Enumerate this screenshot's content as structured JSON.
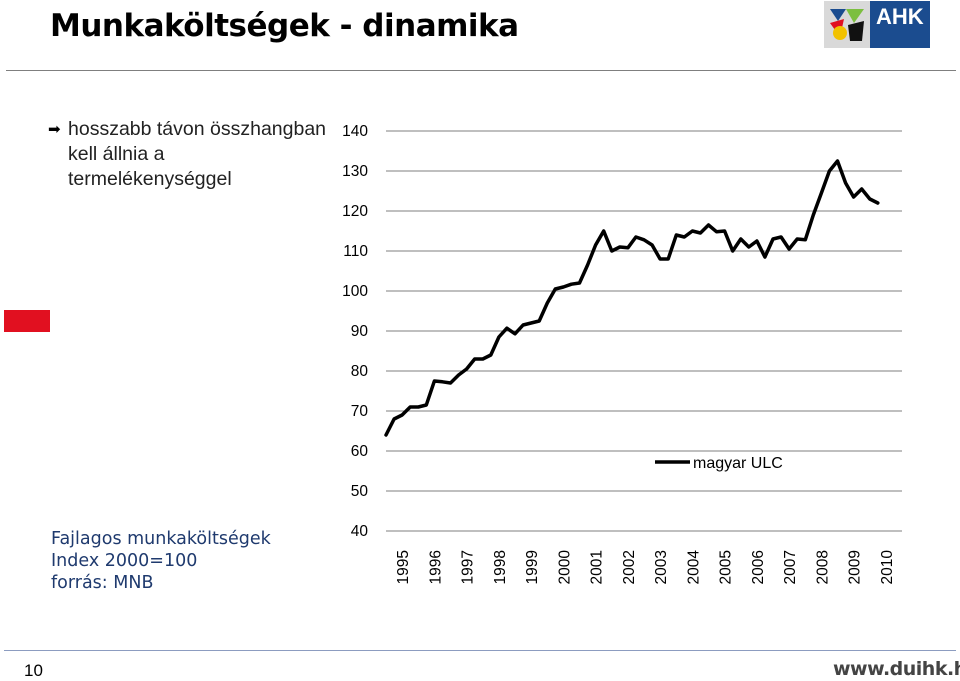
{
  "slide": {
    "title": "Munkaköltségek - dinamika",
    "bullet_text": "hosszabb távon összhangban kell állnia a termelékenységgel",
    "caption_line1": "Fajlagos munkaköltségek",
    "caption_line2": "Index 2000=100",
    "caption_line3": "forrás: MNB",
    "page_number": "10",
    "url": "www.duihk.hu",
    "logo_text": "AHK"
  },
  "colors": {
    "title_rule": "#7f7f7f",
    "logo_blue": "#1b4c8f",
    "red_marker": "#e11020",
    "caption": "#1f3a6e",
    "footer_rule": "#8c9cc0",
    "line": "#000000"
  },
  "chart_data": {
    "type": "line",
    "xlabel": "",
    "ylabel": "",
    "ylim": [
      40,
      140
    ],
    "yticks": [
      40,
      50,
      60,
      70,
      80,
      90,
      100,
      110,
      120,
      130,
      140
    ],
    "categories": [
      "1995",
      "1996",
      "1997",
      "1998",
      "1999",
      "2000",
      "2001",
      "2002",
      "2003",
      "2004",
      "2005",
      "2006",
      "2007",
      "2008",
      "2009",
      "2010"
    ],
    "grid": "horizontal",
    "legend_position": "right",
    "series": [
      {
        "name": "magyar ULC",
        "x": [
          1995.0,
          1995.25,
          1995.5,
          1995.75,
          1996.0,
          1996.25,
          1996.5,
          1996.75,
          1997.0,
          1997.25,
          1997.5,
          1997.75,
          1998.0,
          1998.25,
          1998.5,
          1998.75,
          1999.0,
          1999.25,
          1999.5,
          1999.75,
          2000.0,
          2000.25,
          2000.5,
          2000.75,
          2001.0,
          2001.25,
          2001.5,
          2001.75,
          2002.0,
          2002.25,
          2002.5,
          2002.75,
          2003.0,
          2003.25,
          2003.5,
          2003.75,
          2004.0,
          2004.25,
          2004.5,
          2004.75,
          2005.0,
          2005.25,
          2005.5,
          2005.75,
          2006.0,
          2006.25,
          2006.5,
          2006.75,
          2007.0,
          2007.25,
          2007.5,
          2007.75,
          2008.0,
          2008.25,
          2008.5,
          2008.75,
          2009.0,
          2009.25,
          2009.5,
          2009.75,
          2010.0,
          2010.25
        ],
        "values": [
          64,
          68,
          69,
          71,
          71,
          71.5,
          77.5,
          77.3,
          77,
          79,
          80.5,
          83,
          83,
          84,
          88.5,
          90.7,
          89.3,
          91.5,
          92,
          92.5,
          97,
          100.5,
          101,
          101.7,
          102,
          106.5,
          111.5,
          115,
          110,
          111,
          110.8,
          113.5,
          112.8,
          111.5,
          108,
          108,
          114,
          113.5,
          115,
          114.5,
          116.5,
          114.8,
          115,
          110,
          113,
          111,
          112.5,
          108.5,
          113,
          113.5,
          110.5,
          113,
          112.8,
          119,
          124.5,
          130,
          132.5,
          127,
          123.5,
          125.5,
          123,
          122
        ]
      }
    ]
  }
}
